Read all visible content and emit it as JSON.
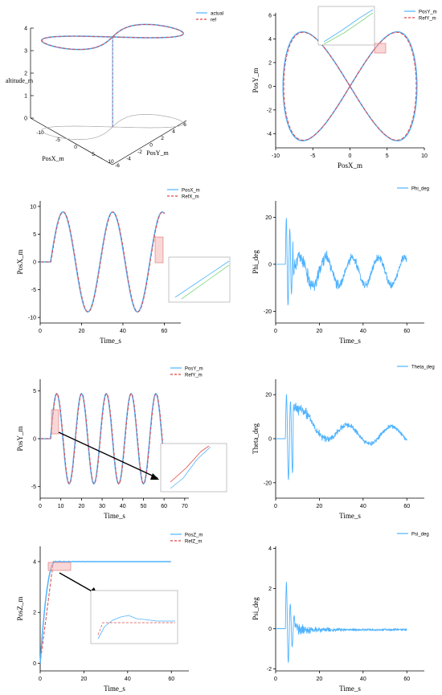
{
  "colors": {
    "actual": "#4fb3ff",
    "ref": "#e04545",
    "shadow": "#a9a9a9",
    "axis": "#000000",
    "zoom_box": "#f4b0b0",
    "inset_line_a": "#4fb3ff",
    "inset_line_b": "#7fd67f"
  },
  "chart_data": [
    {
      "id": "p3d",
      "type": "line3d",
      "title": "",
      "xlabel": "PosX_m",
      "ylabel": "PosY_m",
      "zlabel": "altitude_m",
      "x_ticks": [
        "-10",
        "-5",
        "0",
        "5",
        "10"
      ],
      "y_ticks": [
        "6",
        "4",
        "2",
        "0",
        "-2",
        "-4",
        "-6"
      ],
      "z_ticks": [
        "0",
        "1",
        "2",
        "3",
        "4"
      ],
      "legend": [
        "actual",
        "ref"
      ],
      "series": [
        {
          "name": "actual",
          "description_values": {
            "x_amplitude": 9,
            "y_amplitude": 4.5,
            "altitude": 4
          }
        },
        {
          "name": "ref",
          "description_values": {
            "x_amplitude": 9,
            "y_amplitude": 4.5,
            "altitude": 4
          }
        }
      ]
    },
    {
      "id": "pxy",
      "type": "line",
      "xlabel": "PosX_m",
      "ylabel": "PosY_m",
      "xlim": [
        -10,
        10
      ],
      "ylim": [
        -5.2,
        6.2
      ],
      "x_ticks": [
        "-10",
        "-5",
        "0",
        "5",
        "10"
      ],
      "y_ticks": [
        "-4",
        "-2",
        "0",
        "2",
        "4",
        "6"
      ],
      "legend": [
        "PosY_m",
        "RefY_m"
      ],
      "x_amplitude": 9,
      "y_amplitude": 4.6,
      "has_inset": true
    },
    {
      "id": "px",
      "type": "line",
      "xlabel": "Time_s",
      "ylabel": "PosX_m",
      "xlim": [
        0,
        68
      ],
      "ylim": [
        -11,
        11
      ],
      "x_ticks": [
        "0",
        "20",
        "40",
        "60"
      ],
      "y_ticks": [
        "-10",
        "-5",
        "0",
        "5",
        "10"
      ],
      "legend": [
        "PosX_m",
        "RefX_m"
      ],
      "start_time": 5,
      "end_time": 60,
      "amplitude": 9,
      "period": 24,
      "has_inset": true
    },
    {
      "id": "phi",
      "type": "line",
      "xlabel": "Time_s",
      "ylabel": "Phi_deg",
      "xlim": [
        0,
        68
      ],
      "ylim": [
        -25,
        27
      ],
      "x_ticks": [
        "0",
        "20",
        "40",
        "60"
      ],
      "y_ticks": [
        "-20",
        "0",
        "20"
      ],
      "legend": [
        "Phi_deg"
      ],
      "peak_max": 21,
      "peak_min": -21
    },
    {
      "id": "py",
      "type": "line",
      "xlabel": "Time_s",
      "ylabel": "PosY_m",
      "xlim": [
        0,
        72
      ],
      "ylim": [
        -6.2,
        6.2
      ],
      "x_ticks": [
        "0",
        "10",
        "20",
        "30",
        "40",
        "50",
        "60",
        "70"
      ],
      "y_ticks": [
        "-5",
        "0",
        "5"
      ],
      "legend": [
        "PosY_m",
        "RefY_m"
      ],
      "start_time": 5,
      "end_time": 60,
      "amplitude": 4.7,
      "period": 12,
      "has_inset": true
    },
    {
      "id": "theta",
      "type": "line",
      "xlabel": "Time_s",
      "ylabel": "Theta_deg",
      "xlim": [
        0,
        68
      ],
      "ylim": [
        -27,
        27
      ],
      "x_ticks": [
        "0",
        "20",
        "40",
        "60"
      ],
      "y_ticks": [
        "-20",
        "0",
        "20"
      ],
      "legend": [
        "Theta_deg"
      ],
      "peak_max": 20,
      "peak_min": -21
    },
    {
      "id": "pz",
      "type": "line",
      "xlabel": "Time_s",
      "ylabel": "PosZ_m",
      "xlim": [
        0,
        68
      ],
      "ylim": [
        -0.3,
        4.6
      ],
      "x_ticks": [
        "0",
        "20",
        "40",
        "60"
      ],
      "y_ticks": [
        "0",
        "2",
        "4"
      ],
      "legend": [
        "PosZ_m",
        "RefZ_m"
      ],
      "hold_altitude": 4,
      "rise_end_time": 7,
      "has_inset": true
    },
    {
      "id": "psi",
      "type": "line",
      "xlabel": "Time_s",
      "ylabel": "Psi_deg",
      "xlim": [
        0,
        68
      ],
      "ylim": [
        -2.1,
        4.1
      ],
      "x_ticks": [
        "0",
        "20",
        "40",
        "60"
      ],
      "y_ticks": [
        "-2",
        "0",
        "2",
        "4"
      ],
      "legend": [
        "Psi_deg"
      ],
      "peak_max": 2.7,
      "peak_min": -1.6
    }
  ]
}
